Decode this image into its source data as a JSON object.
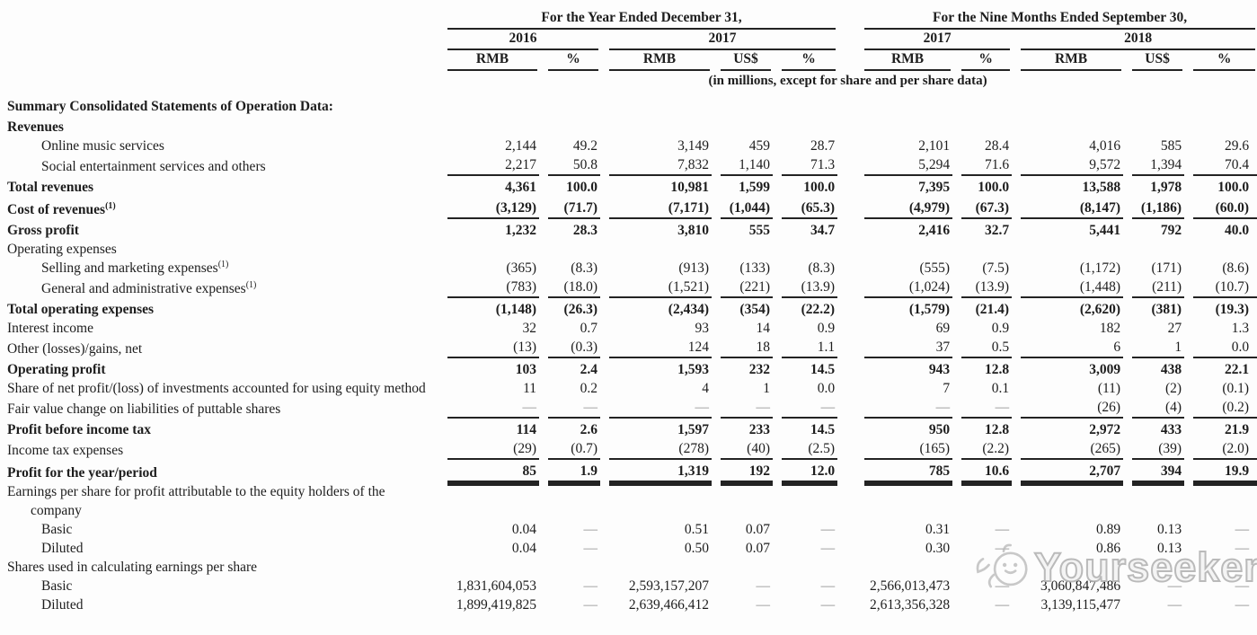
{
  "table": {
    "groups": [
      {
        "label": "For the Year Ended December 31,",
        "years": [
          {
            "label": "2016",
            "cols": [
              "RMB",
              "%"
            ]
          },
          {
            "label": "2017",
            "cols": [
              "RMB",
              "US$",
              "%"
            ]
          }
        ]
      },
      {
        "label": "For the Nine Months Ended September 30,",
        "years": [
          {
            "label": "2017",
            "cols": [
              "RMB",
              "%"
            ]
          },
          {
            "label": "2018",
            "cols": [
              "RMB",
              "US$",
              "%"
            ]
          }
        ]
      }
    ],
    "units_note": "(in millions, except for share and per share data)",
    "rows": [
      {
        "label": "Summary Consolidated Statements of Operation Data:",
        "b": true,
        "values": []
      },
      {
        "label": "Revenues",
        "b": true,
        "values": []
      },
      {
        "label": "Online music services",
        "i": 1,
        "values": [
          "2,144",
          "49.2",
          "3,149",
          "459",
          "28.7",
          "2,101",
          "28.4",
          "4,016",
          "585",
          "29.6"
        ]
      },
      {
        "label": "Social entertainment services and others",
        "i": 1,
        "u": "s",
        "values": [
          "2,217",
          "50.8",
          "7,832",
          "1,140",
          "71.3",
          "5,294",
          "71.6",
          "9,572",
          "1,394",
          "70.4"
        ]
      },
      {
        "label": "Total revenues",
        "b": true,
        "values": [
          "4,361",
          "100.0",
          "10,981",
          "1,599",
          "100.0",
          "7,395",
          "100.0",
          "13,588",
          "1,978",
          "100.0"
        ]
      },
      {
        "label": "Cost of revenues",
        "sup": "(1)",
        "b": true,
        "u": "s",
        "values": [
          "(3,129)",
          "(71.7)",
          "(7,171)",
          "(1,044)",
          "(65.3)",
          "(4,979)",
          "(67.3)",
          "(8,147)",
          "(1,186)",
          "(60.0)"
        ]
      },
      {
        "label": "Gross profit",
        "b": true,
        "values": [
          "1,232",
          "28.3",
          "3,810",
          "555",
          "34.7",
          "2,416",
          "32.7",
          "5,441",
          "792",
          "40.0"
        ]
      },
      {
        "label": "Operating expenses",
        "values": []
      },
      {
        "label": "Selling and marketing expenses",
        "sup": "(1)",
        "i": 1,
        "values": [
          "(365)",
          "(8.3)",
          "(913)",
          "(133)",
          "(8.3)",
          "(555)",
          "(7.5)",
          "(1,172)",
          "(171)",
          "(8.6)"
        ]
      },
      {
        "label": "General and administrative expenses",
        "sup": "(1)",
        "i": 1,
        "u": "s",
        "values": [
          "(783)",
          "(18.0)",
          "(1,521)",
          "(221)",
          "(13.9)",
          "(1,024)",
          "(13.9)",
          "(1,448)",
          "(211)",
          "(10.7)"
        ]
      },
      {
        "label": "Total operating expenses",
        "b": true,
        "values": [
          "(1,148)",
          "(26.3)",
          "(2,434)",
          "(354)",
          "(22.2)",
          "(1,579)",
          "(21.4)",
          "(2,620)",
          "(381)",
          "(19.3)"
        ]
      },
      {
        "label": "Interest income",
        "values": [
          "32",
          "0.7",
          "93",
          "14",
          "0.9",
          "69",
          "0.9",
          "182",
          "27",
          "1.3"
        ]
      },
      {
        "label": "Other (losses)/gains, net",
        "u": "s",
        "values": [
          "(13)",
          "(0.3)",
          "124",
          "18",
          "1.1",
          "37",
          "0.5",
          "6",
          "1",
          "0.0"
        ]
      },
      {
        "label": "Operating profit",
        "b": true,
        "values": [
          "103",
          "2.4",
          "1,593",
          "232",
          "14.5",
          "943",
          "12.8",
          "3,009",
          "438",
          "22.1"
        ]
      },
      {
        "label": "Share of net profit/(loss) of investments accounted for using equity method",
        "hang": true,
        "values": [
          "11",
          "0.2",
          "4",
          "1",
          "0.0",
          "7",
          "0.1",
          "(11)",
          "(2)",
          "(0.1)"
        ]
      },
      {
        "label": "Fair value change on liabilities of puttable shares",
        "u": "s",
        "values": [
          "—",
          "—",
          "—",
          "—",
          "—",
          "—",
          "—",
          "(26)",
          "(4)",
          "(0.2)"
        ]
      },
      {
        "label": "Profit before income tax",
        "b": true,
        "values": [
          "114",
          "2.6",
          "1,597",
          "233",
          "14.5",
          "950",
          "12.8",
          "2,972",
          "433",
          "21.9"
        ]
      },
      {
        "label": "Income tax expenses",
        "u": "s",
        "values": [
          "(29)",
          "(0.7)",
          "(278)",
          "(40)",
          "(2.5)",
          "(165)",
          "(2.2)",
          "(265)",
          "(39)",
          "(2.0)"
        ]
      },
      {
        "label": "Profit for the year/period",
        "b": true,
        "u": "d",
        "values": [
          "85",
          "1.9",
          "1,319",
          "192",
          "12.0",
          "785",
          "10.6",
          "2,707",
          "394",
          "19.9"
        ]
      },
      {
        "label": "Earnings per share for profit attributable to the equity holders of the company",
        "hang": true,
        "values": []
      },
      {
        "label": "Basic",
        "i": 1,
        "values": [
          "0.04",
          "—",
          "0.51",
          "0.07",
          "—",
          "0.31",
          "—",
          "0.89",
          "0.13",
          "—"
        ]
      },
      {
        "label": "Diluted",
        "i": 1,
        "values": [
          "0.04",
          "—",
          "0.50",
          "0.07",
          "—",
          "0.30",
          "—",
          "0.86",
          "0.13",
          "—"
        ]
      },
      {
        "label": "Shares used in calculating earnings per share",
        "values": []
      },
      {
        "label": "Basic",
        "i": 1,
        "values": [
          "1,831,604,053",
          "—",
          "2,593,157,207",
          "—",
          "—",
          "2,566,013,473",
          "—",
          "3,060,847,486",
          "—",
          "—"
        ]
      },
      {
        "label": "Diluted",
        "i": 1,
        "values": [
          "1,899,419,825",
          "—",
          "2,639,466,412",
          "—",
          "—",
          "2,613,356,328",
          "—",
          "3,139,115,477",
          "—",
          "—"
        ]
      }
    ]
  },
  "watermark": {
    "label": "Yourseeker"
  },
  "colors": {
    "text": "#1d1d1d",
    "rule": "#232323",
    "dash": "#8a8a8a",
    "watermark": "#b3b3b3",
    "background": "#fdfdfd"
  }
}
